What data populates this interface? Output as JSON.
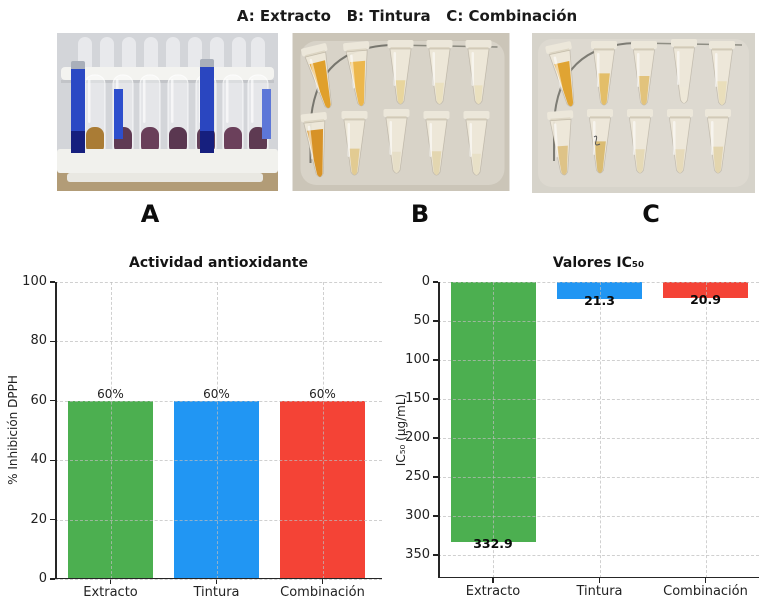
{
  "figure_title": "A: Extracto   B: Tintura   C: Combinación",
  "photos": [
    {
      "label": "A"
    },
    {
      "label": "B"
    },
    {
      "label": "C"
    }
  ],
  "colors": {
    "extracto": "#4CAF50",
    "tintura": "#2196F3",
    "combinacion": "#F44336"
  },
  "chart_data": [
    {
      "type": "bar",
      "title": "Actividad antioxidante",
      "xlabel": "",
      "ylabel": "% Inhibición DPPH",
      "categories": [
        "Extracto",
        "Tintura",
        "Combinación"
      ],
      "values": [
        60,
        60,
        60
      ],
      "value_labels": [
        "60%",
        "60%",
        "60%"
      ],
      "bar_colors": [
        "#4CAF50",
        "#2196F3",
        "#F44336"
      ],
      "ylim": [
        0,
        100
      ],
      "yticks": [
        0,
        20,
        40,
        60,
        80,
        100
      ],
      "grid": "dashed",
      "legend": false,
      "y_inverted": false
    },
    {
      "type": "bar",
      "title": "Valores IC₅₀",
      "xlabel": "",
      "ylabel": "IC₅₀ (µg/mL)",
      "categories": [
        "Extracto",
        "Tintura",
        "Combinación"
      ],
      "values": [
        332.9,
        21.3,
        20.9
      ],
      "value_labels": [
        "332.9",
        "21.3",
        "20.9"
      ],
      "bar_colors": [
        "#4CAF50",
        "#2196F3",
        "#F44336"
      ],
      "ylim": [
        0,
        350
      ],
      "yticks": [
        0,
        50,
        100,
        150,
        200,
        250,
        300,
        350
      ],
      "grid": "dashed",
      "legend": false,
      "y_inverted": true
    }
  ]
}
